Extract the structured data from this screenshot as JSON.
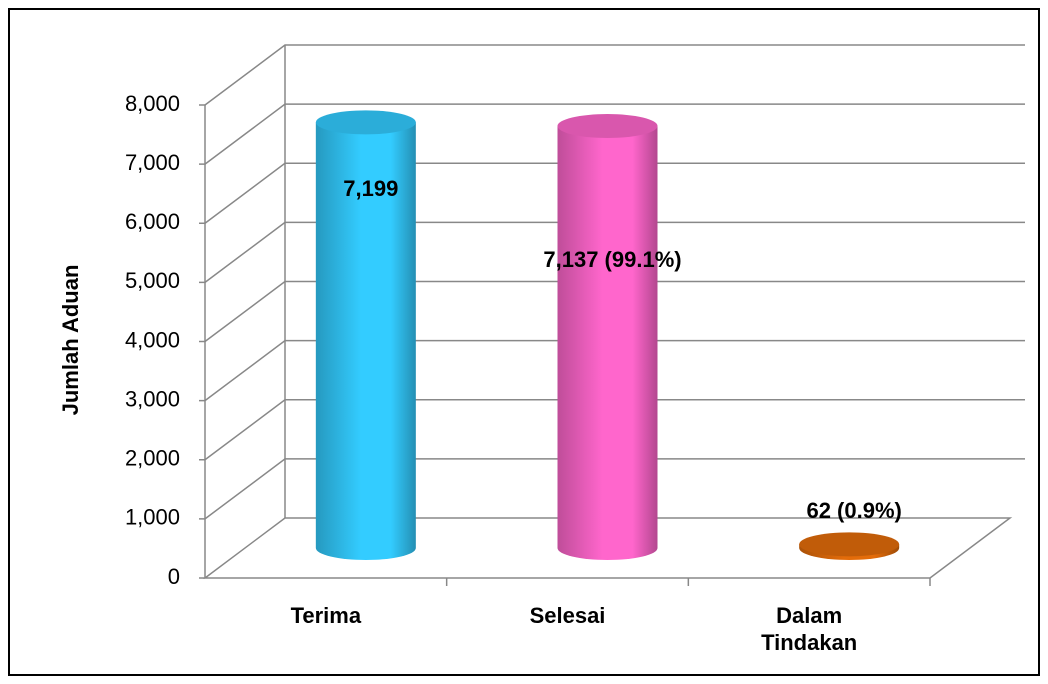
{
  "chart_data": {
    "type": "bar3d",
    "y_label": "Jumlah Aduan",
    "categories": [
      "Terima",
      "Selesai",
      "Dalam Tindakan"
    ],
    "values": [
      7199,
      7137,
      62
    ],
    "value_labels": [
      "7,199",
      "7,137 (99.1%)",
      "62 (0.9%)"
    ],
    "colors": [
      "#33ccff",
      "#ff66cc",
      "#e36c0a"
    ],
    "ylim": [
      0,
      8000
    ],
    "yticks": [
      0,
      {
        "value": 1000,
        "label": "1,000"
      },
      {
        "value": 2000,
        "label": "2,000"
      },
      {
        "value": 3000,
        "label": "3,000"
      },
      {
        "value": 4000,
        "label": "4,000"
      },
      {
        "value": 5000,
        "label": "5,000"
      },
      {
        "value": 6000,
        "label": "6,000"
      },
      {
        "value": 7000,
        "label": "7,000"
      },
      {
        "value": 8000,
        "label": "8,000"
      }
    ],
    "grid": true
  }
}
